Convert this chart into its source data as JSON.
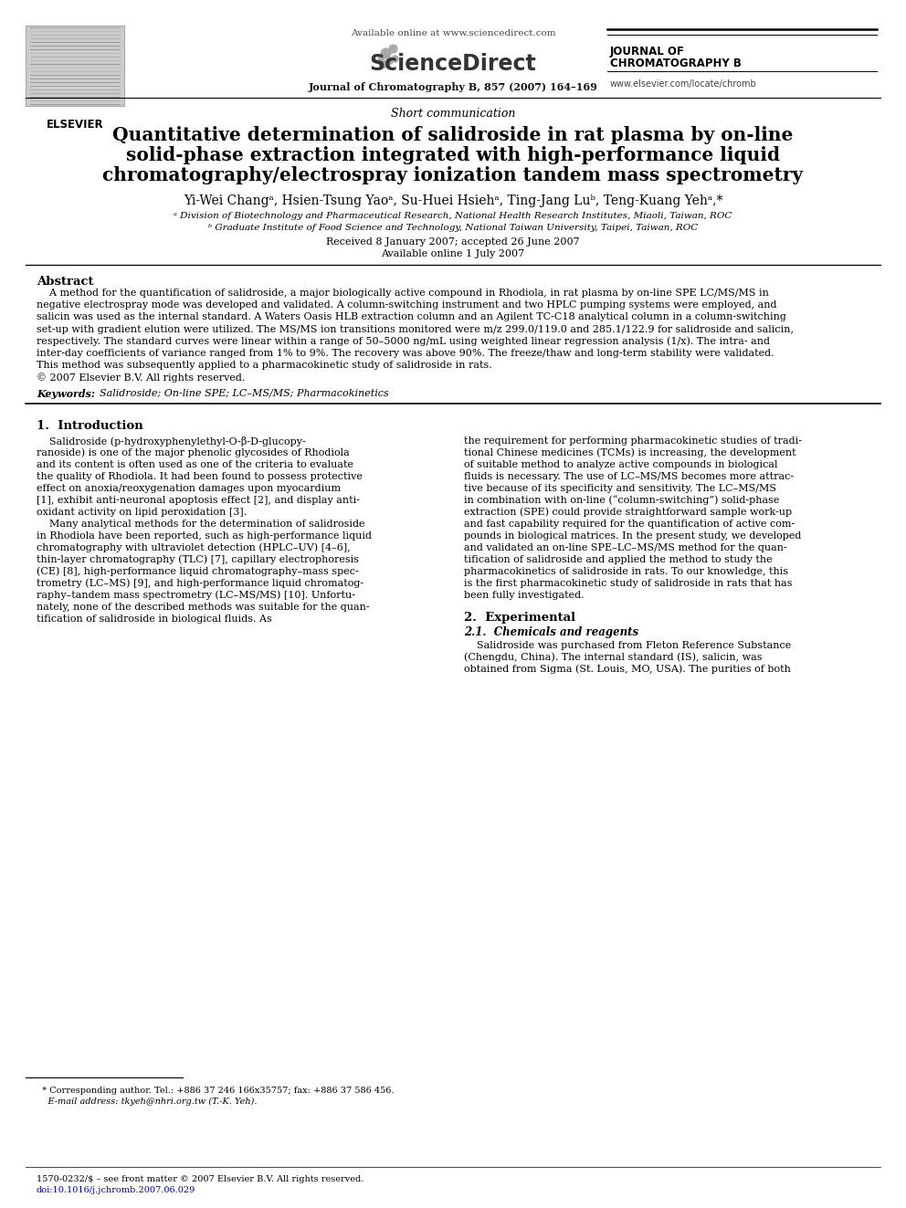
{
  "background_color": "#ffffff",
  "header": {
    "available_online": "Available online at www.sciencedirect.com",
    "sciencedirect_text": "ScienceDirect",
    "journal_name_line1": "JOURNAL OF",
    "journal_name_line2": "CHROMATOGRAPHY B",
    "elsevier_text": "ELSEVIER",
    "journal_ref": "Journal of Chromatography B, 857 (2007) 164–169",
    "url": "www.elsevier.com/locate/chromb"
  },
  "article_type": "Short communication",
  "title_line1": "Quantitative determination of salidroside in rat plasma by on-line",
  "title_line2": "solid-phase extraction integrated with high-performance liquid",
  "title_line3": "chromatography/electrospray ionization tandem mass spectrometry",
  "authors": "Yi-Wei Changᵃ, Hsien-Tsung Yaoᵃ, Su-Huei Hsiehᵃ, Ting-Jang Luᵇ, Teng-Kuang Yehᵃ,*",
  "affil_a": "ᵃ Division of Biotechnology and Pharmaceutical Research, National Health Research Institutes, Miaoli, Taiwan, ROC",
  "affil_b": "ᵇ Graduate Institute of Food Science and Technology, National Taiwan University, Taipei, Taiwan, ROC",
  "dates": "Received 8 January 2007; accepted 26 June 2007",
  "available_online_date": "Available online 1 July 2007",
  "abstract_title": "Abstract",
  "abstract_lines": [
    "    A method for the quantification of salidroside, a major biologically active compound in Rhodiola, in rat plasma by on-line SPE LC/MS/MS in",
    "negative electrospray mode was developed and validated. A column-switching instrument and two HPLC pumping systems were employed, and",
    "salicin was used as the internal standard. A Waters Oasis HLB extraction column and an Agilent TC-C18 analytical column in a column-switching",
    "set-up with gradient elution were utilized. The MS/MS ion transitions monitored were m/z 299.0/119.0 and 285.1/122.9 for salidroside and salicin,",
    "respectively. The standard curves were linear within a range of 50–5000 ng/mL using weighted linear regression analysis (1/x). The intra- and",
    "inter-day coefficients of variance ranged from 1% to 9%. The recovery was above 90%. The freeze/thaw and long-term stability were validated.",
    "This method was subsequently applied to a pharmacokinetic study of salidroside in rats.",
    "© 2007 Elsevier B.V. All rights reserved."
  ],
  "keywords_label": "Keywords:",
  "keywords": "  Salidroside; On-line SPE; LC–MS/MS; Pharmacokinetics",
  "sec1_title": "1.  Introduction",
  "sec1_col1_lines": [
    "    Salidroside (p-hydroxyphenylethyl-O-β-D-glucopy-",
    "ranoside) is one of the major phenolic glycosides of Rhodiola",
    "and its content is often used as one of the criteria to evaluate",
    "the quality of Rhodiola. It had been found to possess protective",
    "effect on anoxia/reoxygenation damages upon myocardium",
    "[1], exhibit anti-neuronal apoptosis effect [2], and display anti-",
    "oxidant activity on lipid peroxidation [3].",
    "    Many analytical methods for the determination of salidroside",
    "in Rhodiola have been reported, such as high-performance liquid",
    "chromatography with ultraviolet detection (HPLC–UV) [4–6],",
    "thin-layer chromatography (TLC) [7], capillary electrophoresis",
    "(CE) [8], high-performance liquid chromatography–mass spec-",
    "trometry (LC–MS) [9], and high-performance liquid chromatog-",
    "raphy–tandem mass spectrometry (LC–MS/MS) [10]. Unfortu-",
    "nately, none of the described methods was suitable for the quan-",
    "tification of salidroside in biological fluids. As"
  ],
  "sec1_col2_lines": [
    "the requirement for performing pharmacokinetic studies of tradi-",
    "tional Chinese medicines (TCMs) is increasing, the development",
    "of suitable method to analyze active compounds in biological",
    "fluids is necessary. The use of LC–MS/MS becomes more attrac-",
    "tive because of its specificity and sensitivity. The LC–MS/MS",
    "in combination with on-line (“column-switching”) solid-phase",
    "extraction (SPE) could provide straightforward sample work-up",
    "and fast capability required for the quantification of active com-",
    "pounds in biological matrices. In the present study, we developed",
    "and validated an on-line SPE–LC–MS/MS method for the quan-",
    "tification of salidroside and applied the method to study the",
    "pharmacokinetics of salidroside in rats. To our knowledge, this",
    "is the first pharmacokinetic study of salidroside in rats that has",
    "been fully investigated."
  ],
  "sec2_title": "2.  Experimental",
  "sec2_1_title": "2.1.  Chemicals and reagents",
  "sec2_1_lines": [
    "    Salidroside was purchased from Fleton Reference Substance",
    "(Chengdu, China). The internal standard (IS), salicin, was",
    "obtained from Sigma (St. Louis, MO, USA). The purities of both"
  ],
  "footnote_star": "  * Corresponding author. Tel.: +886 37 246 166x35757; fax: +886 37 586 456.",
  "footnote_email": "    E-mail address: tkyeh@nhri.org.tw (T.-K. Yeh).",
  "footer_issn": "1570-0232/$ – see front matter © 2007 Elsevier B.V. All rights reserved.",
  "footer_doi": "doi:10.1016/j.jchromb.2007.06.029"
}
